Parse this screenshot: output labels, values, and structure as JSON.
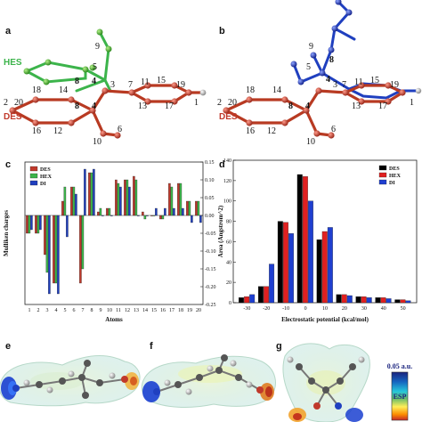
{
  "panels": {
    "a": {
      "label": "a",
      "tags": {
        "hes": "HES",
        "des": "DES"
      },
      "atoms": [
        "9",
        "5",
        "3",
        "7",
        "11",
        "15",
        "19",
        "1",
        "2",
        "20",
        "18",
        "14",
        "13",
        "17",
        "16",
        "12",
        "10",
        "6",
        "8",
        "4",
        "8",
        "4"
      ]
    },
    "b": {
      "label": "b",
      "tags": {
        "des": "DES"
      },
      "atoms": [
        "9",
        "5",
        "8",
        "4",
        "3",
        "7",
        "11",
        "15",
        "19",
        "1",
        "2",
        "20",
        "18",
        "14",
        "13",
        "17",
        "16",
        "12",
        "10",
        "6",
        "8",
        "4"
      ]
    },
    "c": {
      "label": "c"
    },
    "d": {
      "label": "d"
    },
    "e": {
      "label": "e"
    },
    "f": {
      "label": "f"
    },
    "g": {
      "label": "g",
      "colorbar": {
        "top": "0.05 a.u.",
        "mid": "ESP"
      }
    }
  },
  "colors": {
    "des": "#c0392b",
    "hex": "#3cb44b",
    "di": "#1f3fbf",
    "black": "#000000"
  },
  "chart_data": [
    {
      "type": "bar",
      "panel": "c",
      "xlabel": "Atoms",
      "ylabel": "Mulliken charges",
      "categories": [
        "1",
        "2",
        "3",
        "4",
        "5",
        "6",
        "7",
        "8",
        "9",
        "10",
        "11",
        "12",
        "13",
        "14",
        "15",
        "16",
        "17",
        "18",
        "19",
        "20"
      ],
      "ylim": [
        -0.25,
        0.15
      ],
      "yticks": [
        "0.15",
        "0.10",
        "0.05",
        "0.00",
        "-0.05",
        "-0.10",
        "-0.15",
        "-0.20",
        "-0.25"
      ],
      "legend_position": "top-left",
      "series": [
        {
          "name": "DES",
          "color": "#c0392b",
          "values": [
            -0.05,
            -0.05,
            -0.11,
            -0.19,
            0.04,
            0.08,
            -0.19,
            0.12,
            0.01,
            0.02,
            0.1,
            0.1,
            0.11,
            0.01,
            0.0,
            -0.01,
            0.09,
            0.09,
            0.04,
            0.04
          ]
        },
        {
          "name": "HEX",
          "color": "#3cb44b",
          "values": [
            -0.05,
            -0.05,
            -0.16,
            -0.19,
            0.08,
            0.08,
            -0.15,
            0.12,
            0.02,
            0.02,
            0.09,
            0.1,
            0.1,
            -0.01,
            0.0,
            -0.01,
            0.08,
            0.09,
            0.04,
            0.04
          ]
        },
        {
          "name": "DI",
          "color": "#1f3fbf",
          "values": [
            -0.04,
            -0.04,
            -0.22,
            -0.22,
            -0.06,
            0.06,
            0.13,
            0.13,
            0.0,
            0.0,
            0.08,
            0.08,
            0.0,
            0.0,
            0.02,
            0.02,
            0.02,
            0.02,
            -0.02,
            -0.02
          ]
        }
      ]
    },
    {
      "type": "bar",
      "panel": "d",
      "xlabel": "Electrostatic potential (kcal/mol)",
      "ylabel": "Area (Angstrom^2)",
      "categories": [
        "-30",
        "-20",
        "-10",
        "0",
        "10",
        "20",
        "30",
        "40",
        "50"
      ],
      "xticks": [
        "-30",
        "-20",
        "-10",
        "0",
        "10",
        "20",
        "30",
        "40",
        "50"
      ],
      "yticks": [
        "0",
        "20",
        "40",
        "60",
        "80",
        "100",
        "120",
        "140"
      ],
      "ylim": [
        0,
        140
      ],
      "legend_position": "top-right",
      "series": [
        {
          "name": "DES",
          "color": "#000000",
          "values": [
            5,
            16,
            80,
            126,
            62,
            8,
            6,
            5,
            3
          ]
        },
        {
          "name": "HEX",
          "color": "#e02020",
          "values": [
            6,
            16,
            79,
            124,
            70,
            8,
            6,
            5,
            3
          ]
        },
        {
          "name": "DI",
          "color": "#1f3fd0",
          "values": [
            8,
            38,
            68,
            100,
            74,
            7,
            5,
            4,
            2
          ]
        }
      ]
    }
  ]
}
